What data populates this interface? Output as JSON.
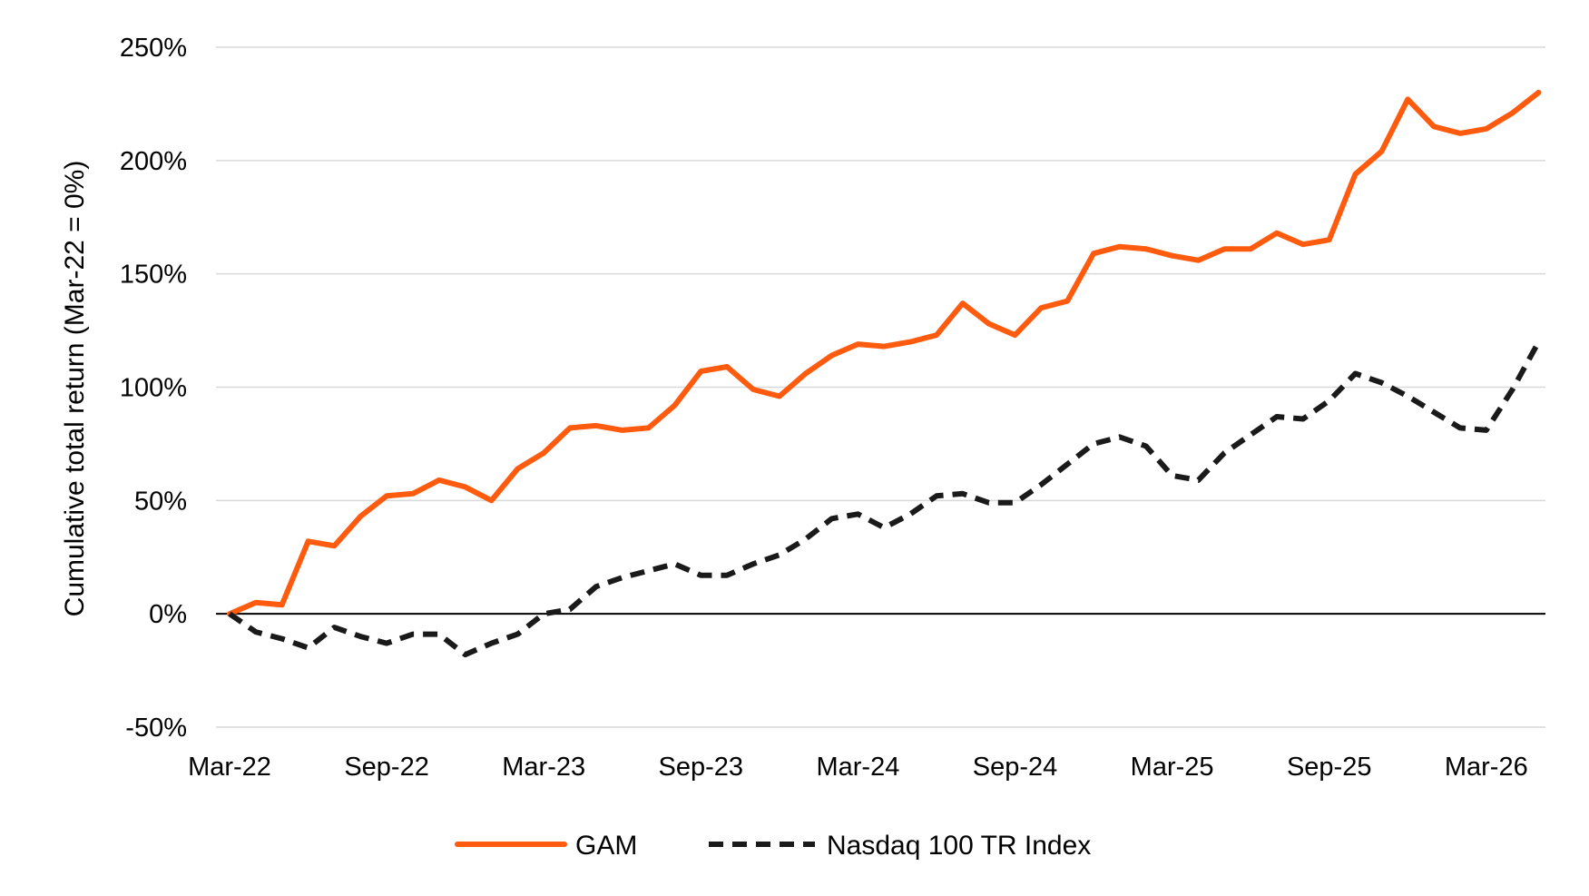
{
  "chart_data": {
    "type": "line",
    "ylabel": "Cumulative total return (Mar-22 = 0%)",
    "xlabel": "",
    "ylim": [
      -50,
      250
    ],
    "yticks": [
      "250%",
      "200%",
      "150%",
      "100%",
      "50%",
      "0%",
      "-50%"
    ],
    "yticks_values": [
      250,
      200,
      150,
      100,
      50,
      0,
      -50
    ],
    "xticks": [
      "Mar-22",
      "Sep-22",
      "Mar-23",
      "Sep-23",
      "Mar-24",
      "Sep-24",
      "Mar-25",
      "Sep-25",
      "Mar-26"
    ],
    "xticks_months": [
      "2022-03",
      "2022-09",
      "2023-03",
      "2023-09",
      "2024-03",
      "2024-09",
      "2025-03",
      "2025-09",
      "2026-03"
    ],
    "x_start": "2022-03",
    "grid": true,
    "legend_position": "bottom",
    "series": [
      {
        "name": "GAM",
        "color": "#ff5b0f",
        "style": "solid",
        "values": [
          0,
          5,
          4,
          32,
          30,
          43,
          52,
          53,
          59,
          56,
          50,
          64,
          71,
          82,
          83,
          81,
          82,
          92,
          107,
          109,
          99,
          96,
          106,
          114,
          119,
          118,
          120,
          123,
          137,
          128,
          123,
          135,
          138,
          159,
          162,
          161,
          158,
          156,
          161,
          161,
          168,
          163,
          165,
          194,
          204,
          227,
          215,
          212,
          214,
          221,
          230
        ]
      },
      {
        "name": "Nasdaq 100 TR Index",
        "color": "#1a1a1a",
        "style": "dashed",
        "values": [
          0,
          -8,
          -11,
          -15,
          -6,
          -10,
          -13,
          -9,
          -9,
          -18,
          -13,
          -9,
          0,
          2,
          12,
          16,
          19,
          22,
          17,
          17,
          22,
          26,
          33,
          42,
          44,
          38,
          44,
          52,
          53,
          49,
          49,
          57,
          66,
          75,
          78,
          74,
          61,
          59,
          71,
          79,
          87,
          86,
          94,
          106,
          102,
          96,
          89,
          82,
          81,
          99,
          120
        ]
      }
    ]
  }
}
